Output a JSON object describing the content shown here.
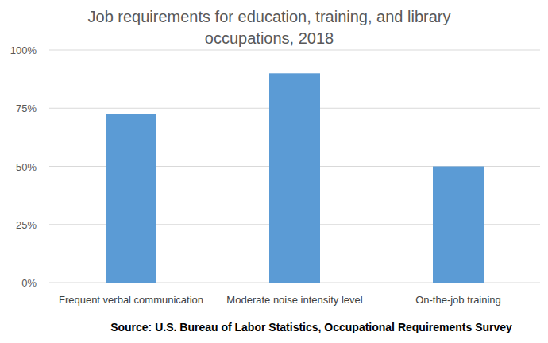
{
  "chart_data": {
    "type": "bar",
    "title": "Job requirements for education, training, and library occupations, 2018",
    "categories": [
      "Frequent verbal communication",
      "Moderate noise intensity level",
      "On-the-job training"
    ],
    "values": [
      72.5,
      90,
      50
    ],
    "color": "#5b9bd5",
    "ylim": [
      0,
      100
    ],
    "yticks": [
      {
        "value": 0,
        "label": "0%"
      },
      {
        "value": 25,
        "label": "25%"
      },
      {
        "value": 50,
        "label": "50%"
      },
      {
        "value": 75,
        "label": "75%"
      },
      {
        "value": 100,
        "label": "100%"
      }
    ],
    "grid": true,
    "source": "Source: U.S. Bureau of Labor Statistics, Occupational Requirements Survey"
  }
}
